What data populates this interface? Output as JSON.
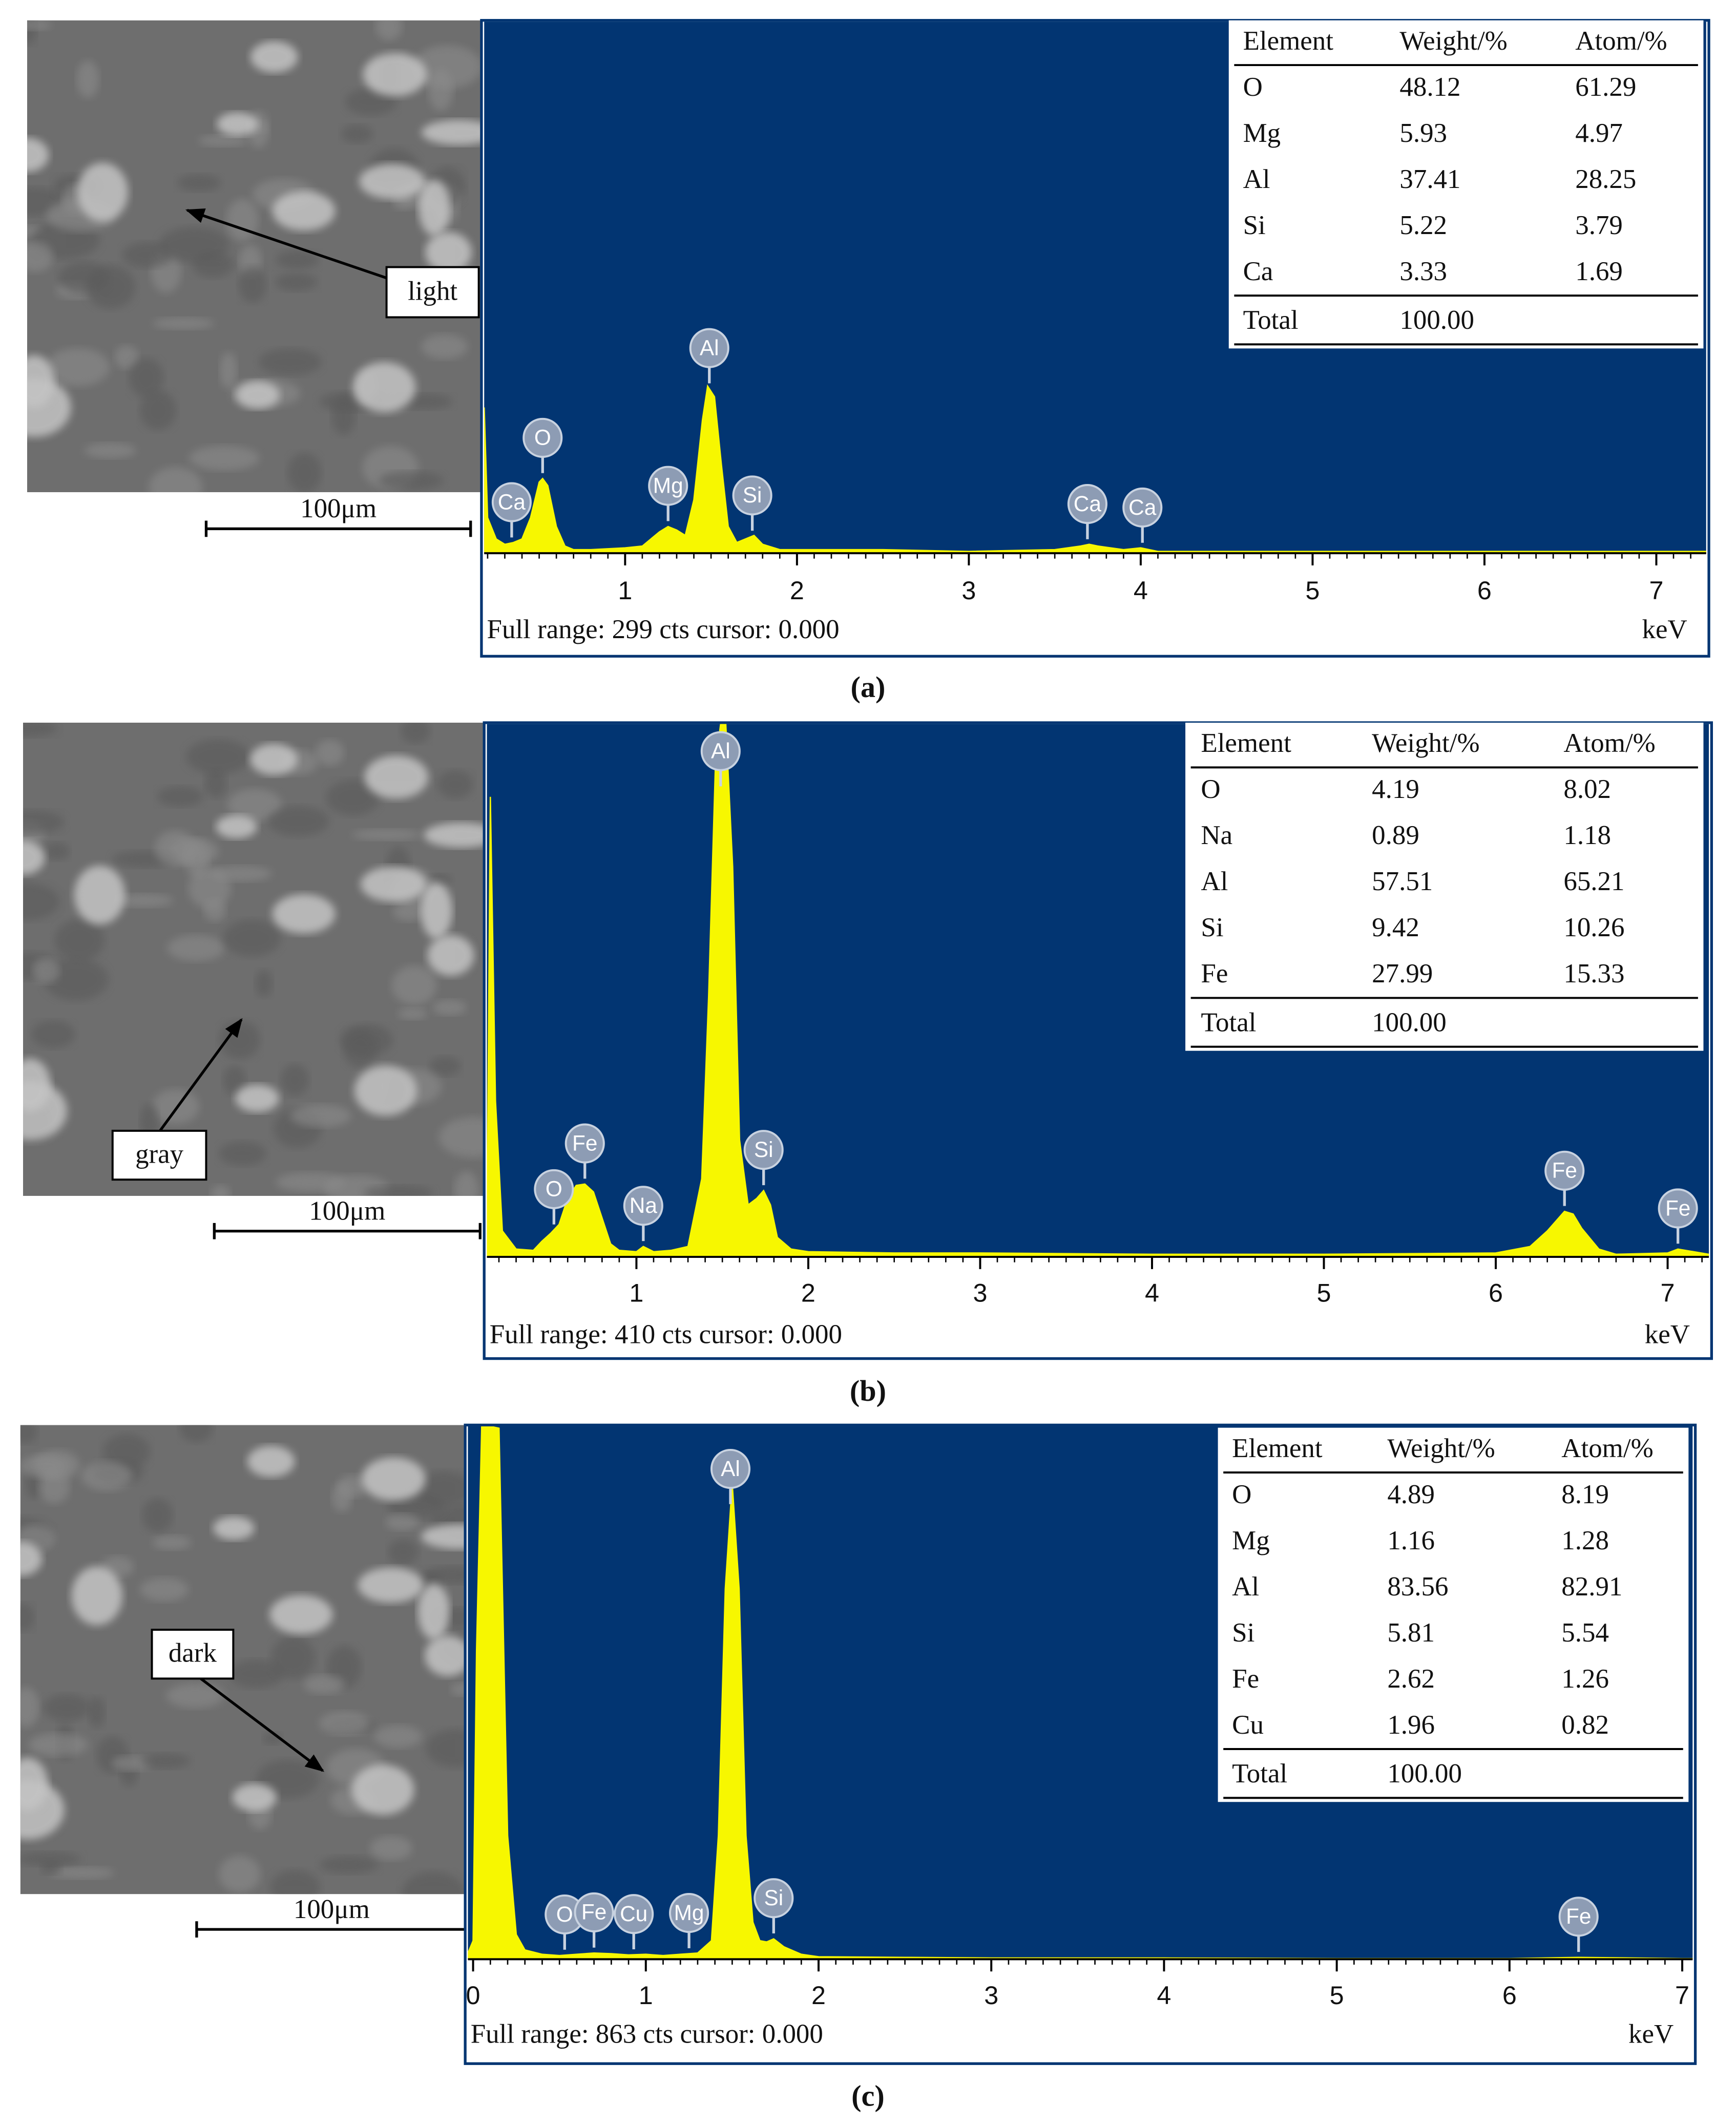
{
  "chart_data": [
    {
      "type": "line",
      "color": "#f7f700",
      "background": "#023572",
      "x": [
        0.18,
        0.2,
        0.25,
        0.3,
        0.35,
        0.4,
        0.45,
        0.5,
        0.52,
        0.55,
        0.6,
        0.65,
        0.7,
        0.8,
        1.0,
        1.1,
        1.2,
        1.25,
        1.3,
        1.35,
        1.4,
        1.45,
        1.48,
        1.52,
        1.56,
        1.6,
        1.65,
        1.7,
        1.75,
        1.8,
        1.9,
        2.2,
        2.5,
        3.0,
        3.5,
        3.65,
        3.7,
        3.75,
        3.9,
        4.0,
        4.1,
        5.0,
        6.0,
        7.0,
        7.29
      ],
      "values": [
        82,
        20,
        8,
        5,
        6,
        8,
        20,
        40,
        42,
        38,
        15,
        4,
        2,
        2,
        3,
        4,
        12,
        15,
        13,
        10,
        30,
        75,
        94,
        88,
        50,
        15,
        6,
        8,
        10,
        5,
        2,
        2,
        2,
        1,
        2,
        4,
        5,
        4,
        2,
        3,
        1,
        1,
        1,
        1,
        1
      ],
      "xlim": [
        0.18,
        7.29
      ],
      "xticks": [
        1,
        2,
        3,
        4,
        5,
        6,
        7
      ],
      "ylim": [
        0,
        299
      ],
      "x_unit": "keV",
      "footer": "Full range: 299 cts  cursor: 0.000",
      "peaks": [
        {
          "label": "Ca",
          "energy": 0.34
        },
        {
          "label": "O",
          "energy": 0.52
        },
        {
          "label": "Mg",
          "energy": 1.25
        },
        {
          "label": "Al",
          "energy": 1.49
        },
        {
          "label": "Si",
          "energy": 1.74
        },
        {
          "label": "Ca",
          "energy": 3.69
        },
        {
          "label": "Ca",
          "energy": 4.01
        }
      ]
    },
    {
      "type": "line",
      "color": "#f7f700",
      "background": "#023572",
      "x": [
        0.13,
        0.15,
        0.18,
        0.22,
        0.3,
        0.4,
        0.45,
        0.5,
        0.55,
        0.6,
        0.65,
        0.7,
        0.75,
        0.8,
        0.85,
        0.9,
        1.0,
        1.04,
        1.1,
        1.2,
        1.3,
        1.38,
        1.42,
        1.46,
        1.49,
        1.52,
        1.56,
        1.6,
        1.65,
        1.7,
        1.74,
        1.78,
        1.82,
        1.9,
        2.0,
        2.5,
        3.0,
        4.0,
        5.0,
        6.0,
        6.2,
        6.3,
        6.4,
        6.45,
        6.5,
        6.6,
        6.7,
        7.0,
        7.06,
        7.24
      ],
      "values": [
        8,
        354,
        120,
        20,
        6,
        5,
        12,
        18,
        25,
        45,
        55,
        56,
        50,
        30,
        10,
        5,
        4,
        8,
        4,
        5,
        8,
        60,
        200,
        380,
        410,
        410,
        300,
        90,
        40,
        45,
        51,
        40,
        15,
        6,
        4,
        3,
        3,
        2,
        2,
        3,
        8,
        20,
        35,
        33,
        22,
        6,
        2,
        3,
        6,
        2
      ],
      "xlim": [
        0.13,
        7.24
      ],
      "xticks": [
        1,
        2,
        3,
        4,
        5,
        6,
        7
      ],
      "ylim": [
        0,
        410
      ],
      "x_unit": "keV",
      "footer": "Full range: 410 cts  cursor: 0.000",
      "peaks": [
        {
          "label": "O",
          "energy": 0.52
        },
        {
          "label": "Fe",
          "energy": 0.7
        },
        {
          "label": "Na",
          "energy": 1.04
        },
        {
          "label": "Al",
          "energy": 1.49
        },
        {
          "label": "Si",
          "energy": 1.74
        },
        {
          "label": "Fe",
          "energy": 6.4
        },
        {
          "label": "Fe",
          "energy": 7.06
        }
      ]
    },
    {
      "type": "line",
      "color": "#f7f700",
      "background": "#023572",
      "x": [
        -0.03,
        0.0,
        0.02,
        0.05,
        0.1,
        0.15,
        0.2,
        0.25,
        0.3,
        0.4,
        0.5,
        0.6,
        0.7,
        0.8,
        0.9,
        1.0,
        1.1,
        1.2,
        1.3,
        1.38,
        1.42,
        1.46,
        1.5,
        1.54,
        1.58,
        1.62,
        1.66,
        1.7,
        1.74,
        1.8,
        1.9,
        2.0,
        2.5,
        3.0,
        4.0,
        5.0,
        6.0,
        6.4,
        7.0,
        7.06
      ],
      "values": [
        10,
        30,
        500,
        863,
        863,
        860,
        200,
        40,
        15,
        8,
        6,
        8,
        10,
        9,
        7,
        8,
        6,
        8,
        10,
        30,
        200,
        600,
        771,
        600,
        200,
        60,
        30,
        28,
        33,
        20,
        8,
        4,
        3,
        2,
        2,
        1,
        1,
        3,
        1,
        1
      ],
      "xlim": [
        -0.03,
        7.06
      ],
      "xticks": [
        0,
        1,
        2,
        3,
        4,
        5,
        6,
        7
      ],
      "ylim": [
        0,
        863
      ],
      "x_unit": "keV",
      "footer": "Full range: 863 cts  cursor: 0.000",
      "peaks": [
        {
          "label": "O",
          "energy": 0.53
        },
        {
          "label": "Fe",
          "energy": 0.7
        },
        {
          "label": "Cu",
          "energy": 0.93
        },
        {
          "label": "Mg",
          "energy": 1.25
        },
        {
          "label": "Al",
          "energy": 1.49
        },
        {
          "label": "Si",
          "energy": 1.74
        },
        {
          "label": "Fe",
          "energy": 6.4
        }
      ]
    }
  ],
  "panels": [
    {
      "caption": "(a)",
      "region": "light",
      "scale_bar": "100μm",
      "table": {
        "header": [
          "Element",
          "Weight/%",
          "Atom/%"
        ],
        "rows": [
          [
            "O",
            "48.12",
            "61.29"
          ],
          [
            "Mg",
            "5.93",
            "4.97"
          ],
          [
            "Al",
            "37.41",
            "28.25"
          ],
          [
            "Si",
            "5.22",
            "3.79"
          ],
          [
            "Ca",
            "3.33",
            "1.69"
          ]
        ],
        "total": [
          "Total",
          "100.00"
        ]
      }
    },
    {
      "caption": "(b)",
      "region": "gray",
      "scale_bar": "100μm",
      "table": {
        "header": [
          "Element",
          "Weight/%",
          "Atom/%"
        ],
        "rows": [
          [
            "O",
            "4.19",
            "8.02"
          ],
          [
            "Na",
            "0.89",
            "1.18"
          ],
          [
            "Al",
            "57.51",
            "65.21"
          ],
          [
            "Si",
            "9.42",
            "10.26"
          ],
          [
            "Fe",
            "27.99",
            "15.33"
          ]
        ],
        "total": [
          "Total",
          "100.00"
        ]
      }
    },
    {
      "caption": "(c)",
      "region": "dark",
      "scale_bar": "100μm",
      "table": {
        "header": [
          "Element",
          "Weight/%",
          "Atom/%"
        ],
        "rows": [
          [
            "O",
            "4.89",
            "8.19"
          ],
          [
            "Mg",
            "1.16",
            "1.28"
          ],
          [
            "Al",
            "83.56",
            "82.91"
          ],
          [
            "Si",
            "5.81",
            "5.54"
          ],
          [
            "Fe",
            "2.62",
            "1.26"
          ],
          [
            "Cu",
            "1.96",
            "0.82"
          ]
        ],
        "total": [
          "Total",
          "100.00"
        ]
      }
    }
  ]
}
